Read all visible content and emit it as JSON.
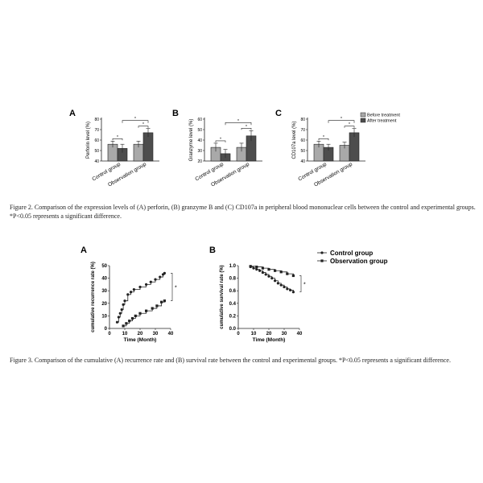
{
  "figure2": {
    "caption": "Figure 2. Comparison of the expression levels of (A) perforin, (B) granzyme B and (C) CD107a in peripheral blood mononuclear cells between the control and experimental groups. *P<0.05 represents a significant difference.",
    "legend": [
      "Before treatment",
      "After treatment"
    ],
    "colors": {
      "before": "#a9a9a9",
      "after": "#4d4d4d"
    }
  },
  "figure3": {
    "caption": "Figure 3. Comparison of the cumulative (A) recurrence rate and (B) survival rate between the control and experimental groups. *P<0.05 represents a significant difference.",
    "legend": [
      "Control group",
      "Observation group"
    ]
  },
  "chart_data": [
    {
      "panel": "A",
      "type": "bar",
      "ylabel": "Perforin level (%)",
      "ylim": [
        40,
        80
      ],
      "yticks": [
        40,
        50,
        60,
        70,
        80
      ],
      "categories": [
        "Control group",
        "Observation group"
      ],
      "series": [
        {
          "name": "Before treatment",
          "values": [
            56,
            56
          ],
          "errors": [
            3,
            3
          ]
        },
        {
          "name": "After treatment",
          "values": [
            52,
            67
          ],
          "errors": [
            4,
            4
          ]
        }
      ],
      "annotations": [
        "*",
        "*",
        "*"
      ]
    },
    {
      "panel": "B",
      "type": "bar",
      "ylabel": "Granzyme level (%)",
      "ylim": [
        20,
        60
      ],
      "yticks": [
        20,
        30,
        40,
        50,
        60
      ],
      "categories": [
        "Control group",
        "Observation group"
      ],
      "series": [
        {
          "name": "Before treatment",
          "values": [
            33,
            33
          ],
          "errors": [
            4,
            4
          ]
        },
        {
          "name": "After treatment",
          "values": [
            27,
            44
          ],
          "errors": [
            4,
            5
          ]
        }
      ],
      "annotations": [
        "*",
        "*",
        "*"
      ]
    },
    {
      "panel": "C",
      "type": "bar",
      "ylabel": "CD107a level (%)",
      "ylim": [
        40,
        80
      ],
      "yticks": [
        40,
        50,
        60,
        70,
        80
      ],
      "categories": [
        "Control group",
        "Observation group"
      ],
      "series": [
        {
          "name": "Before treatment",
          "values": [
            56,
            55
          ],
          "errors": [
            3,
            3
          ]
        },
        {
          "name": "After treatment",
          "values": [
            53,
            67
          ],
          "errors": [
            3,
            4
          ]
        }
      ],
      "annotations": [
        "*",
        "*",
        "*"
      ]
    },
    {
      "panel": "A",
      "type": "line",
      "ylabel": "cumulative recurrence rate (%)",
      "xlabel": "Time (Month)",
      "xlim": [
        0,
        40
      ],
      "ylim": [
        0,
        50
      ],
      "xticks": [
        0,
        10,
        20,
        30,
        40
      ],
      "yticks": [
        0,
        10,
        20,
        30,
        40,
        50
      ],
      "series": [
        {
          "name": "Control group",
          "marker": "circle",
          "x": [
            5,
            6,
            7,
            8,
            9,
            10,
            12,
            14,
            16,
            20,
            24,
            27,
            30,
            33,
            35,
            36
          ],
          "y": [
            5,
            9,
            12,
            15,
            19,
            22,
            27,
            29,
            31,
            33,
            35,
            37,
            39,
            41,
            43,
            44
          ]
        },
        {
          "name": "Observation group",
          "marker": "square",
          "x": [
            9,
            11,
            13,
            15,
            17,
            20,
            24,
            28,
            31,
            34,
            36
          ],
          "y": [
            2,
            4,
            6,
            8,
            10,
            12,
            14,
            16,
            18,
            21,
            22
          ]
        }
      ],
      "annotations": [
        "*"
      ]
    },
    {
      "panel": "B",
      "type": "line",
      "ylabel": "cumulative survival rate (%)",
      "xlabel": "Time (Month)",
      "xlim": [
        0,
        40
      ],
      "ylim": [
        0.0,
        1.0
      ],
      "xticks": [
        0,
        10,
        20,
        30,
        40
      ],
      "yticks": [
        0.0,
        0.2,
        0.4,
        0.6,
        0.8,
        1.0
      ],
      "series": [
        {
          "name": "Control group",
          "marker": "circle",
          "x": [
            8,
            10,
            12,
            14,
            16,
            18,
            20,
            22,
            24,
            26,
            28,
            30,
            32,
            34,
            36
          ],
          "y": [
            0.98,
            0.96,
            0.94,
            0.92,
            0.89,
            0.86,
            0.83,
            0.8,
            0.76,
            0.72,
            0.69,
            0.66,
            0.63,
            0.61,
            0.58
          ]
        },
        {
          "name": "Observation group",
          "marker": "square",
          "x": [
            8,
            12,
            16,
            20,
            24,
            28,
            32,
            36
          ],
          "y": [
            0.99,
            0.98,
            0.96,
            0.94,
            0.92,
            0.9,
            0.87,
            0.84
          ]
        }
      ],
      "annotations": [
        "*"
      ]
    }
  ]
}
